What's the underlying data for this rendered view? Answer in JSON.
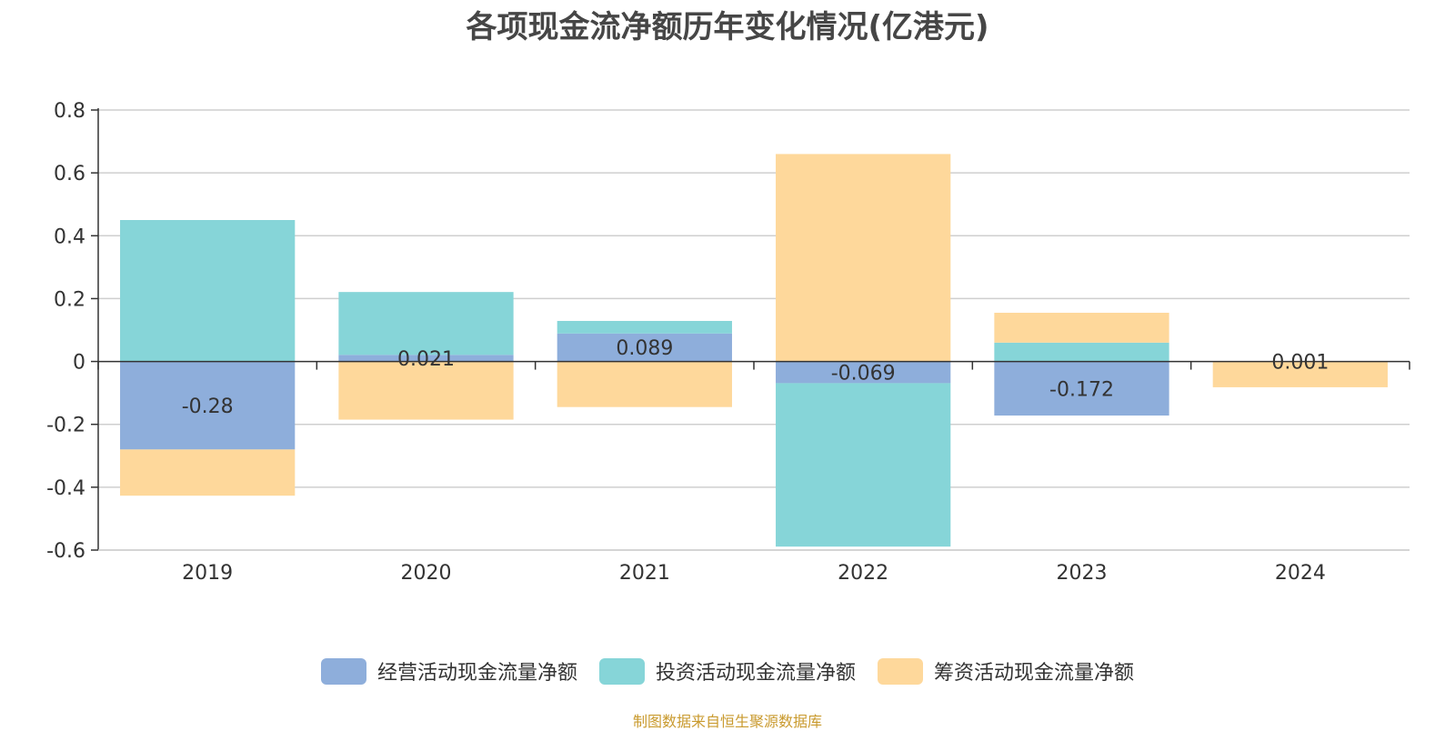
{
  "chart_data": {
    "type": "bar",
    "stacked": true,
    "title": "各项现金流净额历年变化情况(亿港元)",
    "categories": [
      "2019",
      "2020",
      "2021",
      "2022",
      "2023",
      "2024"
    ],
    "series": [
      {
        "name": "经营活动现金流量净额",
        "color": "#8eaedb",
        "values": [
          -0.28,
          0.021,
          0.089,
          -0.069,
          -0.172,
          0.001
        ],
        "labels": [
          "-0.28",
          "0.021",
          "0.089",
          "-0.069",
          "-0.172",
          "0.001"
        ]
      },
      {
        "name": "投资活动现金流量净额",
        "color": "#86d5d8",
        "values": [
          0.45,
          0.2,
          0.04,
          -0.52,
          0.06,
          0.0
        ]
      },
      {
        "name": "筹资活动现金流量净额",
        "color": "#fed89b",
        "values": [
          -0.147,
          -0.185,
          -0.145,
          0.66,
          0.095,
          -0.082
        ]
      }
    ],
    "ylim": [
      -0.6,
      0.8
    ],
    "yticks": [
      "0.8",
      "0.6",
      "0.4",
      "0.2",
      "0",
      "-0.2",
      "-0.4",
      "-0.6"
    ],
    "ytick_values": [
      0.8,
      0.6,
      0.4,
      0.2,
      0,
      -0.2,
      -0.4,
      -0.6
    ],
    "grid": true,
    "legend_position": "bottom-center",
    "source_note": "制图数据来自恒生聚源数据库"
  }
}
